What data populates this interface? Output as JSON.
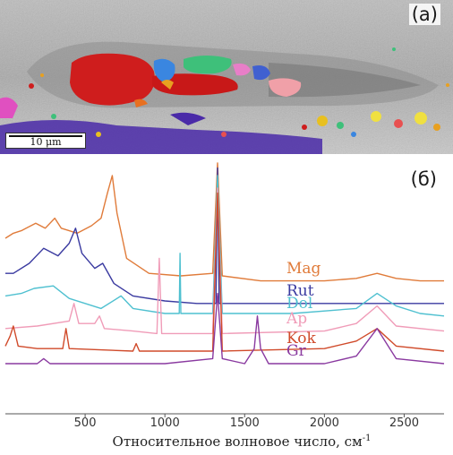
{
  "figure": {
    "panel_a_label": "(a)",
    "panel_b_label": "(б)",
    "scale_bar_text": "10 μm"
  },
  "chart_data": {
    "type": "line",
    "title": "",
    "xlabel": "Относительное волновое число, см",
    "xlabel_superscript": "-1",
    "ylabel": "",
    "xlim": [
      0,
      2750
    ],
    "xticks": [
      500,
      1000,
      1500,
      2000,
      2500
    ],
    "grid": false,
    "legend": "inline labels at right",
    "series": [
      {
        "name": "Mag",
        "color": "#e07b3a",
        "peaks_cm1": [
          190,
          310,
          540,
          670,
          1330,
          2330
        ],
        "x": [
          0,
          50,
          100,
          190,
          250,
          310,
          350,
          400,
          450,
          540,
          600,
          640,
          670,
          700,
          760,
          900,
          1100,
          1300,
          1330,
          1360,
          1600,
          2000,
          2200,
          2330,
          2450,
          2600,
          2750
        ],
        "y": [
          0.7,
          0.72,
          0.73,
          0.76,
          0.74,
          0.78,
          0.74,
          0.73,
          0.72,
          0.75,
          0.78,
          0.88,
          0.95,
          0.8,
          0.62,
          0.56,
          0.55,
          0.56,
          1.0,
          0.55,
          0.53,
          0.53,
          0.54,
          0.56,
          0.54,
          0.53,
          0.53
        ]
      },
      {
        "name": "Rut",
        "color": "#3a3aa0",
        "peaks_cm1": [
          240,
          440,
          610,
          1330
        ],
        "x": [
          0,
          50,
          150,
          240,
          330,
          400,
          440,
          480,
          560,
          610,
          680,
          800,
          1000,
          1200,
          1320,
          1330,
          1340,
          1500,
          2000,
          2500,
          2750
        ],
        "y": [
          0.56,
          0.56,
          0.6,
          0.66,
          0.63,
          0.68,
          0.74,
          0.64,
          0.58,
          0.6,
          0.52,
          0.47,
          0.45,
          0.44,
          0.44,
          0.98,
          0.44,
          0.44,
          0.44,
          0.44,
          0.44
        ]
      },
      {
        "name": "Dol",
        "color": "#4fc0d0",
        "peaks_cm1": [
          180,
          300,
          725,
          1095,
          1330,
          2330
        ],
        "x": [
          0,
          100,
          180,
          300,
          400,
          500,
          600,
          725,
          800,
          1000,
          1090,
          1095,
          1100,
          1300,
          1330,
          1360,
          1800,
          2200,
          2330,
          2450,
          2600,
          2750
        ],
        "y": [
          0.47,
          0.48,
          0.5,
          0.51,
          0.46,
          0.44,
          0.42,
          0.47,
          0.42,
          0.4,
          0.4,
          0.64,
          0.4,
          0.4,
          0.95,
          0.4,
          0.4,
          0.42,
          0.48,
          0.43,
          0.4,
          0.39
        ]
      },
      {
        "name": "Ap",
        "color": "#f09cb8",
        "peaks_cm1": [
          430,
          590,
          965,
          1330,
          2330
        ],
        "x": [
          0,
          200,
          400,
          430,
          460,
          560,
          590,
          620,
          800,
          950,
          965,
          980,
          1300,
          1330,
          1360,
          2000,
          2200,
          2330,
          2450,
          2750
        ],
        "y": [
          0.34,
          0.35,
          0.37,
          0.44,
          0.36,
          0.36,
          0.39,
          0.34,
          0.33,
          0.32,
          0.62,
          0.32,
          0.32,
          0.9,
          0.32,
          0.33,
          0.36,
          0.43,
          0.35,
          0.33
        ]
      },
      {
        "name": "Kok",
        "color": "#d04a2a",
        "peaks_cm1": [
          50,
          380,
          820,
          1330,
          2330
        ],
        "x": [
          0,
          30,
          50,
          80,
          200,
          360,
          380,
          400,
          800,
          820,
          840,
          1300,
          1330,
          1360,
          2000,
          2200,
          2330,
          2450,
          2750
        ],
        "y": [
          0.27,
          0.31,
          0.35,
          0.27,
          0.26,
          0.26,
          0.34,
          0.26,
          0.25,
          0.28,
          0.25,
          0.25,
          0.88,
          0.25,
          0.26,
          0.29,
          0.34,
          0.27,
          0.25
        ]
      },
      {
        "name": "Gr",
        "color": "#8a3aa0",
        "peaks_cm1": [
          240,
          1330,
          1580,
          2330
        ],
        "x": [
          0,
          200,
          240,
          280,
          600,
          1000,
          1300,
          1330,
          1360,
          1500,
          1560,
          1580,
          1600,
          1650,
          2000,
          2200,
          2330,
          2450,
          2750
        ],
        "y": [
          0.2,
          0.2,
          0.22,
          0.2,
          0.2,
          0.2,
          0.22,
          0.48,
          0.22,
          0.2,
          0.26,
          0.39,
          0.26,
          0.2,
          0.2,
          0.23,
          0.34,
          0.22,
          0.2
        ]
      }
    ]
  }
}
